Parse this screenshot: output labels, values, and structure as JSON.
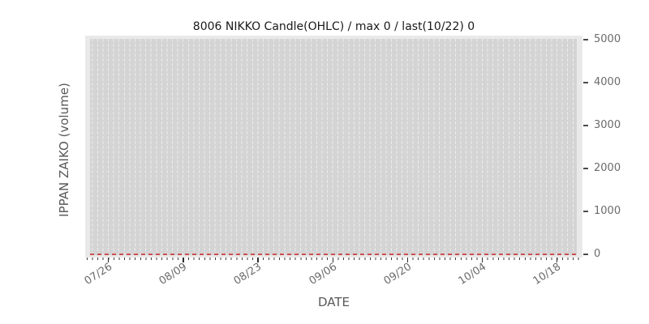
{
  "chart_data": {
    "type": "candlestick",
    "title": "8006 NIKKO Candle(OHLC) / max 0 / last(10/22) 0",
    "xlabel": "DATE",
    "ylabel": "IPPAN ZAIKO (volume)",
    "categories": [
      "07/26",
      "08/09",
      "08/23",
      "09/06",
      "09/20",
      "10/04",
      "10/18"
    ],
    "series": [
      {
        "name": "IPPAN ZAIKO volume",
        "values": [
          0,
          0,
          0,
          0,
          0,
          0,
          0
        ]
      }
    ],
    "y_ticks": [
      0,
      1000,
      2000,
      3000,
      4000,
      5000
    ],
    "ylim": [
      0,
      5000
    ],
    "y_axis_side": "right",
    "x_tick_interval_days": 14,
    "x_minor_tick_interval_days": 1,
    "grid": "vertical daily white dashed lines on gray background",
    "legend_position": "none",
    "annotations": {
      "max_volume": 0,
      "last_date": "10/22",
      "last_value": 0,
      "zero_line": {
        "y": 0,
        "style": "dashed",
        "color": "#cc4f4f"
      }
    },
    "colors": {
      "figure_bg": "#ffffff",
      "plot_bg": "#e9e9e9",
      "grid_base": "#d4d4d4",
      "grid_dash": "#ebebeb",
      "zero_line": "#cc4f4f",
      "title_text": "#1a1a1a",
      "axis_label_text": "#595959",
      "tick_text": "#6b6b6b",
      "tick_mark": "#2e2e2e"
    }
  }
}
